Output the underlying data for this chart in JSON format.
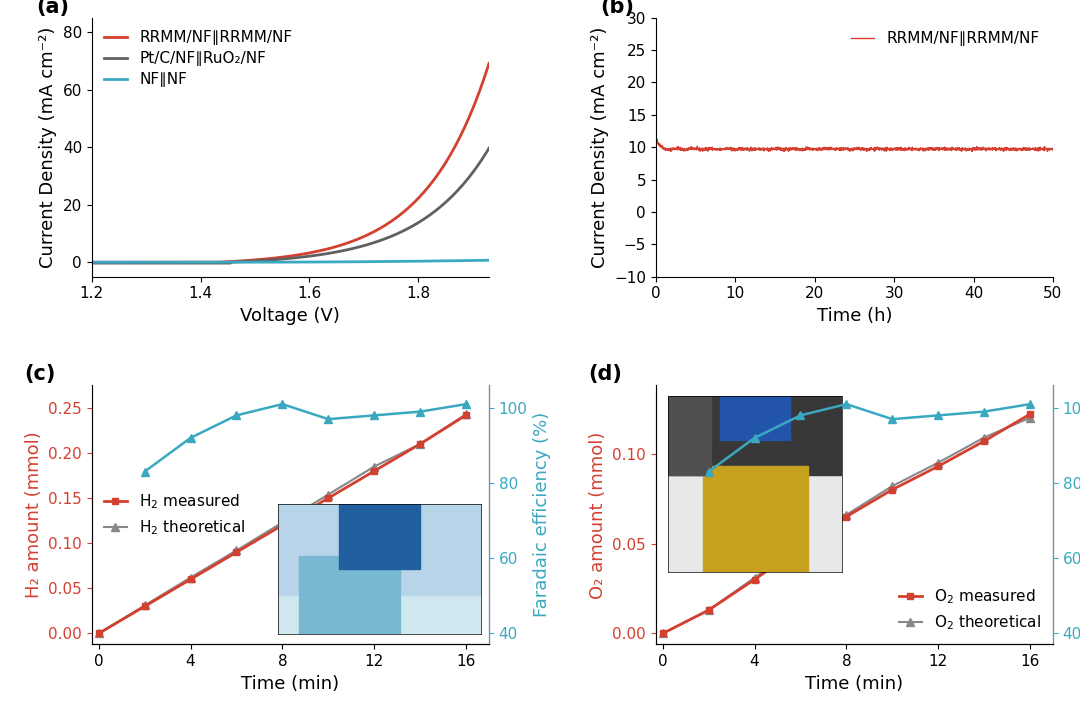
{
  "panel_a": {
    "title_label": "(a)",
    "xlabel": "Voltage (V)",
    "ylabel": "Current Density (mA cm⁻²)",
    "xlim": [
      1.2,
      1.93
    ],
    "ylim": [
      -5,
      85
    ],
    "yticks": [
      0,
      20,
      40,
      60,
      80
    ],
    "xticks": [
      1.2,
      1.4,
      1.6,
      1.8
    ],
    "lines": [
      {
        "label": "RRMM/NF∥RRMM/NF",
        "color": "#d44030",
        "lw": 2.0
      },
      {
        "label": "Pt/C/NF∥RuO₂/NF",
        "color": "#606060",
        "lw": 2.0
      },
      {
        "label": "NF∥NF",
        "color": "#3aa8c1",
        "lw": 2.0
      }
    ]
  },
  "panel_b": {
    "title_label": "(b)",
    "xlabel": "Time (h)",
    "ylabel": "Current Density (mA cm⁻²)",
    "xlim": [
      0,
      50
    ],
    "ylim": [
      -10,
      30
    ],
    "yticks": [
      -10,
      -5,
      0,
      5,
      10,
      15,
      20,
      25,
      30
    ],
    "xticks": [
      0,
      10,
      20,
      30,
      40,
      50
    ],
    "line_color": "#d44030",
    "label": "RRMM/NF∥RRMM/NF"
  },
  "panel_c": {
    "title_label": "(c)",
    "xlabel": "Time (min)",
    "ylabel_left": "H₂ amount (mmol)",
    "ylabel_right": "Faradaic efficiency (%)",
    "xlim": [
      -0.3,
      17
    ],
    "ylim_left": [
      -0.012,
      0.275
    ],
    "ylim_right": [
      37,
      106
    ],
    "xticks": [
      0,
      4,
      8,
      12,
      16
    ],
    "yticks_left": [
      0.0,
      0.05,
      0.1,
      0.15,
      0.2,
      0.25
    ],
    "yticks_right": [
      40,
      60,
      80,
      100
    ],
    "measured_x": [
      0,
      2,
      4,
      6,
      8,
      10,
      12,
      14,
      16
    ],
    "measured_y": [
      0.0,
      0.03,
      0.06,
      0.09,
      0.12,
      0.15,
      0.18,
      0.21,
      0.242
    ],
    "theoretical_x": [
      0,
      2,
      4,
      6,
      8,
      10,
      12,
      14,
      16
    ],
    "theoretical_y": [
      0.0,
      0.031,
      0.062,
      0.092,
      0.123,
      0.154,
      0.185,
      0.21,
      0.243
    ],
    "faradaic_x": [
      2,
      4,
      6,
      8,
      10,
      12,
      14,
      16
    ],
    "faradaic_y": [
      83,
      92,
      98,
      101,
      97,
      98,
      99,
      101
    ],
    "measured_color": "#d44030",
    "theoretical_color": "#888888",
    "faradaic_color": "#3aa8c1",
    "inset_color": "#aaaaaa"
  },
  "panel_d": {
    "title_label": "(d)",
    "xlabel": "Time (min)",
    "ylabel_left": "O₂ amount (mmol)",
    "ylabel_right": "Faradaic efficiency (%)",
    "xlim": [
      -0.3,
      17
    ],
    "ylim_left": [
      -0.006,
      0.138
    ],
    "ylim_right": [
      37,
      106
    ],
    "xticks": [
      0,
      4,
      8,
      12,
      16
    ],
    "yticks_left": [
      0.0,
      0.05,
      0.1
    ],
    "yticks_right": [
      40,
      60,
      80,
      100
    ],
    "measured_x": [
      0,
      2,
      4,
      6,
      8,
      10,
      12,
      14,
      16
    ],
    "measured_y": [
      0.0,
      0.013,
      0.03,
      0.048,
      0.065,
      0.08,
      0.093,
      0.107,
      0.122
    ],
    "theoretical_x": [
      0,
      2,
      4,
      6,
      8,
      10,
      12,
      14,
      16
    ],
    "theoretical_y": [
      0.0,
      0.013,
      0.031,
      0.049,
      0.066,
      0.082,
      0.095,
      0.109,
      0.12
    ],
    "faradaic_x": [
      2,
      4,
      6,
      8,
      10,
      12,
      14,
      16
    ],
    "faradaic_y": [
      83,
      92,
      98,
      101,
      97,
      98,
      99,
      101
    ],
    "measured_color": "#d44030",
    "theoretical_color": "#888888",
    "faradaic_color": "#3aa8c1",
    "inset_color_top": "#404040",
    "inset_color_bot": "#c8a428"
  },
  "background_color": "#ffffff",
  "label_fontsize": 13,
  "tick_fontsize": 11,
  "legend_fontsize": 11,
  "panel_label_fontsize": 15
}
